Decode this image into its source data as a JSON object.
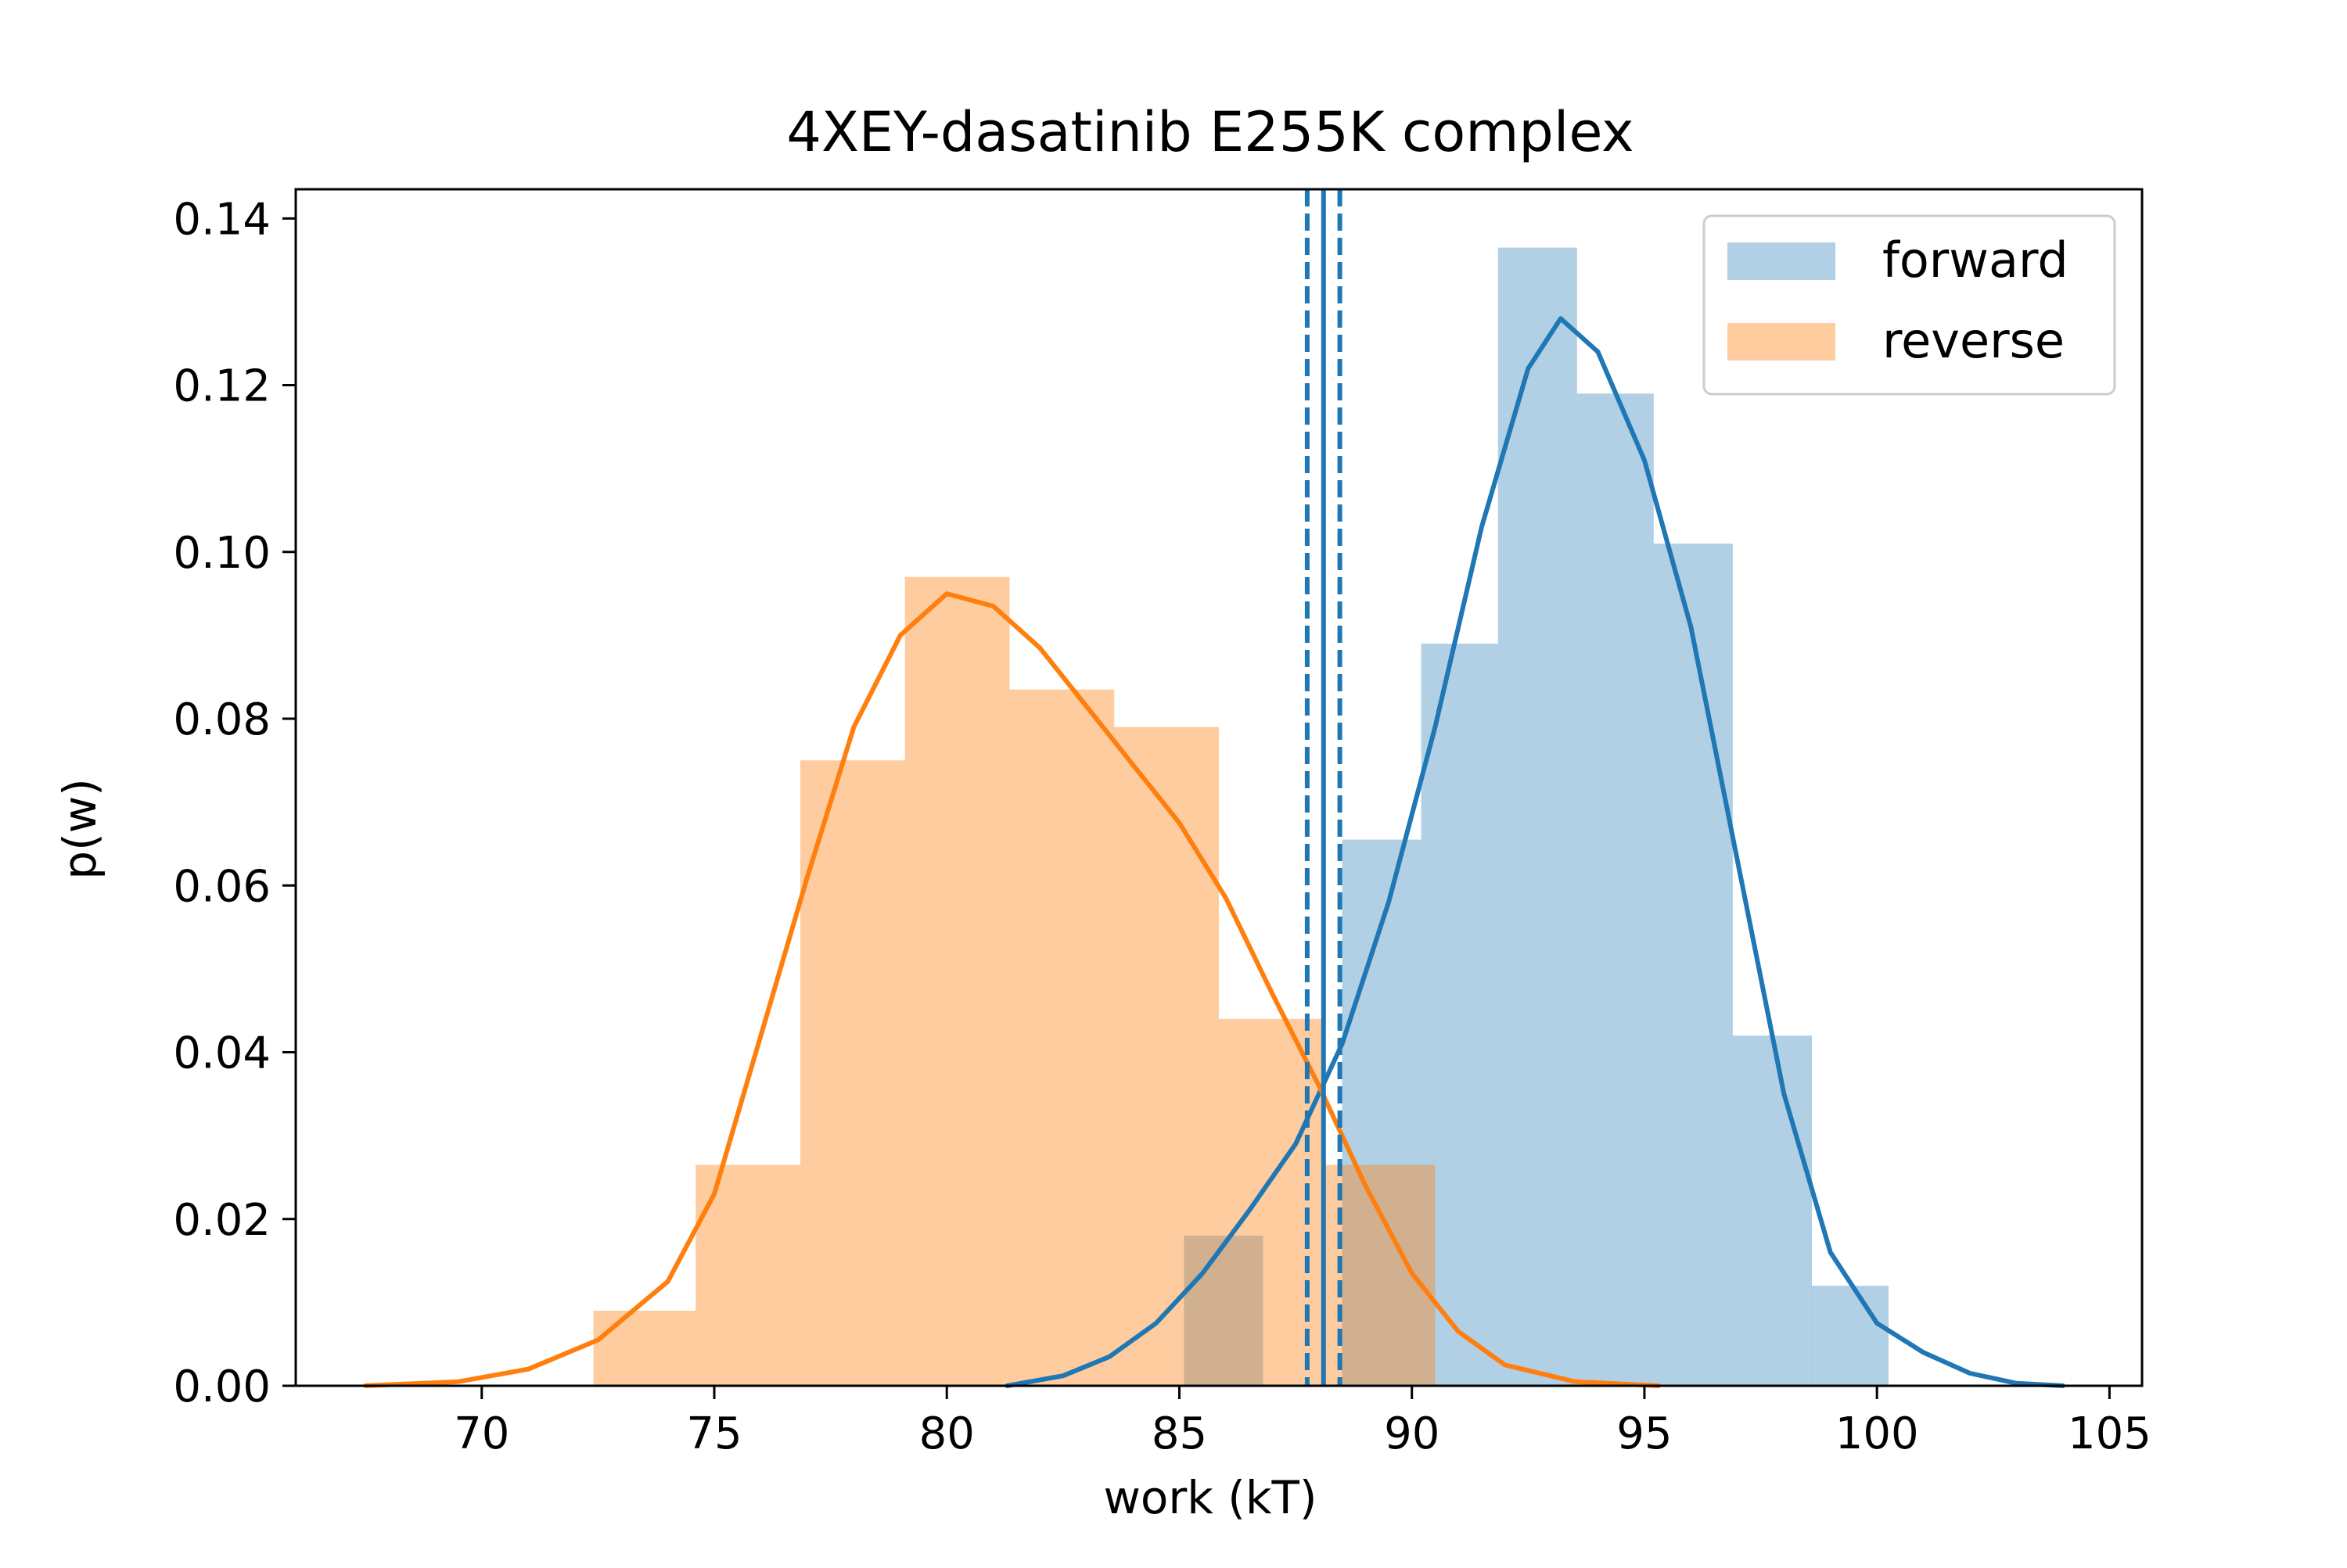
{
  "chart_data": {
    "type": "histogram",
    "title": "4XEY-dasatinib E255K complex",
    "xlabel": "work (kT)",
    "ylabel": "p(w)",
    "xlim": [
      66.0,
      105.7
    ],
    "ylim": [
      0.0,
      0.1435
    ],
    "xticks": [
      70,
      75,
      80,
      85,
      90,
      95,
      100,
      105
    ],
    "yticks": [
      0.0,
      0.02,
      0.04,
      0.06,
      0.08,
      0.1,
      0.12,
      0.14
    ],
    "xtick_labels": [
      "70",
      "75",
      "80",
      "85",
      "90",
      "95",
      "100",
      "105"
    ],
    "ytick_labels": [
      "0.00",
      "0.02",
      "0.04",
      "0.06",
      "0.08",
      "0.10",
      "0.12",
      "0.14"
    ],
    "legend": {
      "placement": "upper right",
      "entries": [
        "forward",
        "reverse"
      ]
    },
    "series": [
      {
        "name": "forward",
        "color": "#1f77b4",
        "bar_alpha": 0.35,
        "bins": [
          {
            "x0": 85.1,
            "x1": 86.8,
            "value": 0.018
          },
          {
            "x0": 86.8,
            "x1": 88.5,
            "value": 0.0
          },
          {
            "x0": 88.5,
            "x1": 90.2,
            "value": 0.0655
          },
          {
            "x0": 90.2,
            "x1": 91.85,
            "value": 0.089
          },
          {
            "x0": 91.85,
            "x1": 93.55,
            "value": 0.1365
          },
          {
            "x0": 93.55,
            "x1": 95.2,
            "value": 0.119
          },
          {
            "x0": 95.2,
            "x1": 96.9,
            "value": 0.101
          },
          {
            "x0": 96.9,
            "x1": 98.6,
            "value": 0.042
          },
          {
            "x0": 98.6,
            "x1": 100.25,
            "value": 0.012
          }
        ],
        "kde": [
          [
            81.3,
            0.0
          ],
          [
            82.5,
            0.0012
          ],
          [
            83.5,
            0.0035
          ],
          [
            84.5,
            0.0075
          ],
          [
            85.5,
            0.0135
          ],
          [
            86.5,
            0.021
          ],
          [
            87.5,
            0.029
          ],
          [
            88.5,
            0.041
          ],
          [
            89.5,
            0.058
          ],
          [
            90.5,
            0.079
          ],
          [
            91.5,
            0.103
          ],
          [
            92.5,
            0.122
          ],
          [
            93.2,
            0.128
          ],
          [
            94.0,
            0.124
          ],
          [
            95.0,
            0.111
          ],
          [
            96.0,
            0.091
          ],
          [
            97.0,
            0.063
          ],
          [
            98.0,
            0.035
          ],
          [
            99.0,
            0.016
          ],
          [
            100.0,
            0.0075
          ],
          [
            101.0,
            0.004
          ],
          [
            102.0,
            0.0015
          ],
          [
            103.0,
            0.0003
          ],
          [
            104.0,
            0.0
          ]
        ]
      },
      {
        "name": "reverse",
        "color": "#ff7f0e",
        "bar_alpha": 0.4,
        "bins": [
          {
            "x0": 72.4,
            "x1": 74.6,
            "value": 0.009
          },
          {
            "x0": 74.6,
            "x1": 76.85,
            "value": 0.0265
          },
          {
            "x0": 76.85,
            "x1": 79.1,
            "value": 0.075
          },
          {
            "x0": 79.1,
            "x1": 81.35,
            "value": 0.097
          },
          {
            "x0": 81.35,
            "x1": 83.6,
            "value": 0.0835
          },
          {
            "x0": 83.6,
            "x1": 85.85,
            "value": 0.079
          },
          {
            "x0": 85.85,
            "x1": 88.1,
            "value": 0.044
          },
          {
            "x0": 88.1,
            "x1": 90.5,
            "value": 0.0265
          }
        ],
        "kde": [
          [
            67.5,
            0.0
          ],
          [
            69.5,
            0.0005
          ],
          [
            71.0,
            0.002
          ],
          [
            72.5,
            0.0055
          ],
          [
            74.0,
            0.0125
          ],
          [
            75.0,
            0.023
          ],
          [
            76.0,
            0.042
          ],
          [
            77.0,
            0.061
          ],
          [
            78.0,
            0.079
          ],
          [
            79.0,
            0.09
          ],
          [
            80.0,
            0.095
          ],
          [
            81.0,
            0.0935
          ],
          [
            82.0,
            0.0885
          ],
          [
            83.0,
            0.0815
          ],
          [
            84.0,
            0.0745
          ],
          [
            85.0,
            0.0675
          ],
          [
            86.0,
            0.0585
          ],
          [
            87.0,
            0.047
          ],
          [
            88.0,
            0.036
          ],
          [
            89.0,
            0.024
          ],
          [
            90.0,
            0.0135
          ],
          [
            91.0,
            0.0065
          ],
          [
            92.0,
            0.0025
          ],
          [
            93.5,
            0.0005
          ],
          [
            95.3,
            0.0
          ]
        ]
      }
    ],
    "vertical_lines": [
      {
        "x": 88.1,
        "color": "#1f77b4",
        "style": "solid"
      },
      {
        "x": 87.75,
        "color": "#1f77b4",
        "style": "dashed"
      },
      {
        "x": 88.45,
        "color": "#1f77b4",
        "style": "dashed"
      }
    ]
  }
}
